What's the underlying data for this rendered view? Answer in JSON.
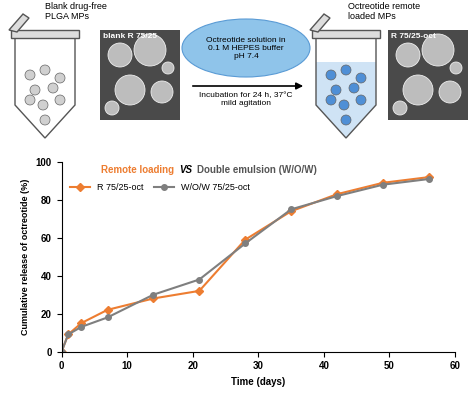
{
  "diagram": {
    "left_tube": {
      "label": "Blank drug-free\nPLGA MPs",
      "image_label": "blank R 75/25"
    },
    "step": {
      "solution": "Octreotide solution in\n0.1 M HEPES buffer\npH 7.4",
      "conditions": "Incubation for 24 h, 37°C\nmild agitation"
    },
    "right_tube": {
      "label": "Octreotide remote\nloaded MPs",
      "image_label": "R 75/25-oct"
    }
  },
  "chart_data": {
    "type": "line",
    "annotations": [
      "Remote loading",
      "VS",
      "Double emulsion (W/O/W)"
    ],
    "x_label": "Time (days)",
    "y_label": "Cumulative release of octreotide (%)",
    "x": [
      0,
      1,
      3,
      7,
      14,
      21,
      28,
      35,
      42,
      49,
      56
    ],
    "series": [
      {
        "name": "R 75/25-oct",
        "color": "#ED7D31",
        "marker": "diamond",
        "values": [
          0,
          9,
          15,
          22,
          28,
          32,
          59,
          74,
          83,
          89,
          92
        ]
      },
      {
        "name": "W/O/W 75/25-oct",
        "color": "#7F7F7F",
        "marker": "circle",
        "values": [
          0,
          9,
          13,
          18,
          30,
          38,
          57,
          75,
          82,
          88,
          91
        ]
      }
    ],
    "xlim": [
      0,
      60
    ],
    "xticks": [
      0,
      10,
      20,
      30,
      40,
      50,
      60
    ],
    "ylim": [
      0,
      100
    ],
    "yticks": [
      0,
      20,
      40,
      60,
      80,
      100
    ],
    "grid": false,
    "legend": "upper left"
  }
}
